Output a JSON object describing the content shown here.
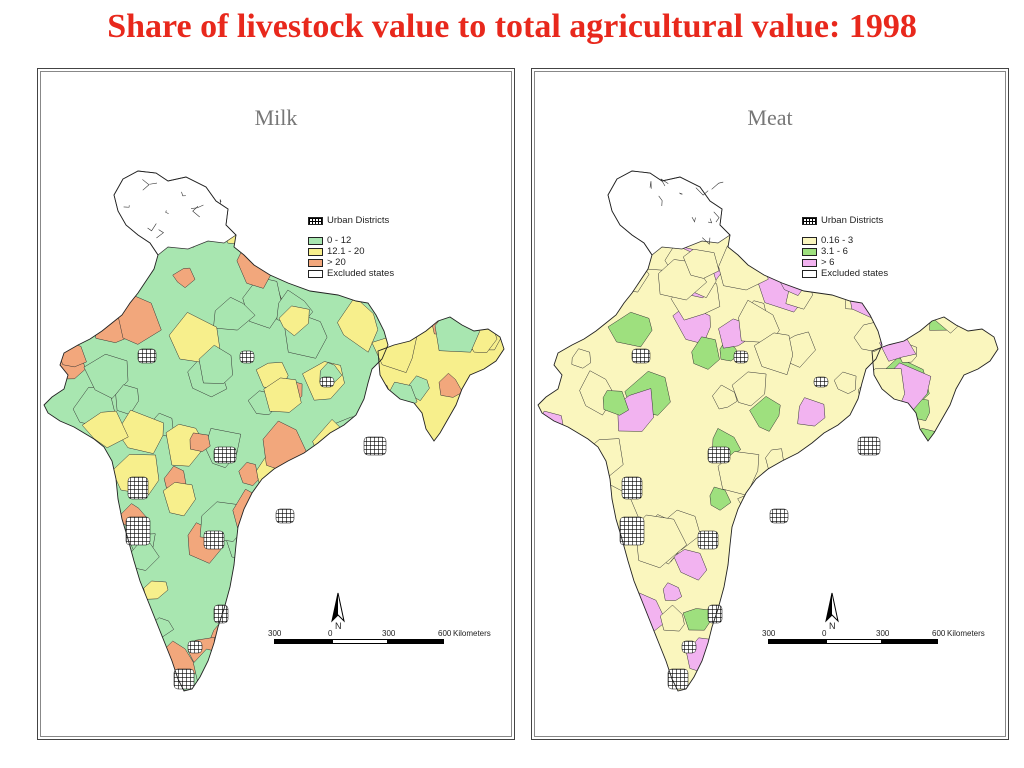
{
  "page": {
    "title": "Share of livestock value to total agricultural value: 1998"
  },
  "panels": [
    {
      "title": "Milk",
      "legend": [
        {
          "label": "Urban Districts",
          "type": "hatch",
          "color": "#000000"
        },
        {
          "label": "0 - 12",
          "type": "fill",
          "color": "#a8e6b0"
        },
        {
          "label": "12.1 - 20",
          "type": "fill",
          "color": "#f7ef8c"
        },
        {
          "label": "> 20",
          "type": "fill",
          "color": "#f2a77c"
        },
        {
          "label": "Excluded states",
          "type": "fill",
          "color": "#ffffff"
        }
      ],
      "scale": {
        "ticks": [
          "300",
          "0",
          "300",
          "600"
        ],
        "unit": "Kilometers"
      },
      "north_label": "N"
    },
    {
      "title": "Meat",
      "legend": [
        {
          "label": "Urban Districts",
          "type": "hatch",
          "color": "#000000"
        },
        {
          "label": "0.16 - 3",
          "type": "fill",
          "color": "#faf6be"
        },
        {
          "label": "3.1 - 6",
          "type": "fill",
          "color": "#9ee07e"
        },
        {
          "label": "> 6",
          "type": "fill",
          "color": "#f2b3f0"
        },
        {
          "label": "Excluded states",
          "type": "fill",
          "color": "#ffffff"
        }
      ],
      "scale": {
        "ticks": [
          "300",
          "0",
          "300",
          "600"
        ],
        "unit": "Kilometers"
      },
      "north_label": "N"
    }
  ]
}
